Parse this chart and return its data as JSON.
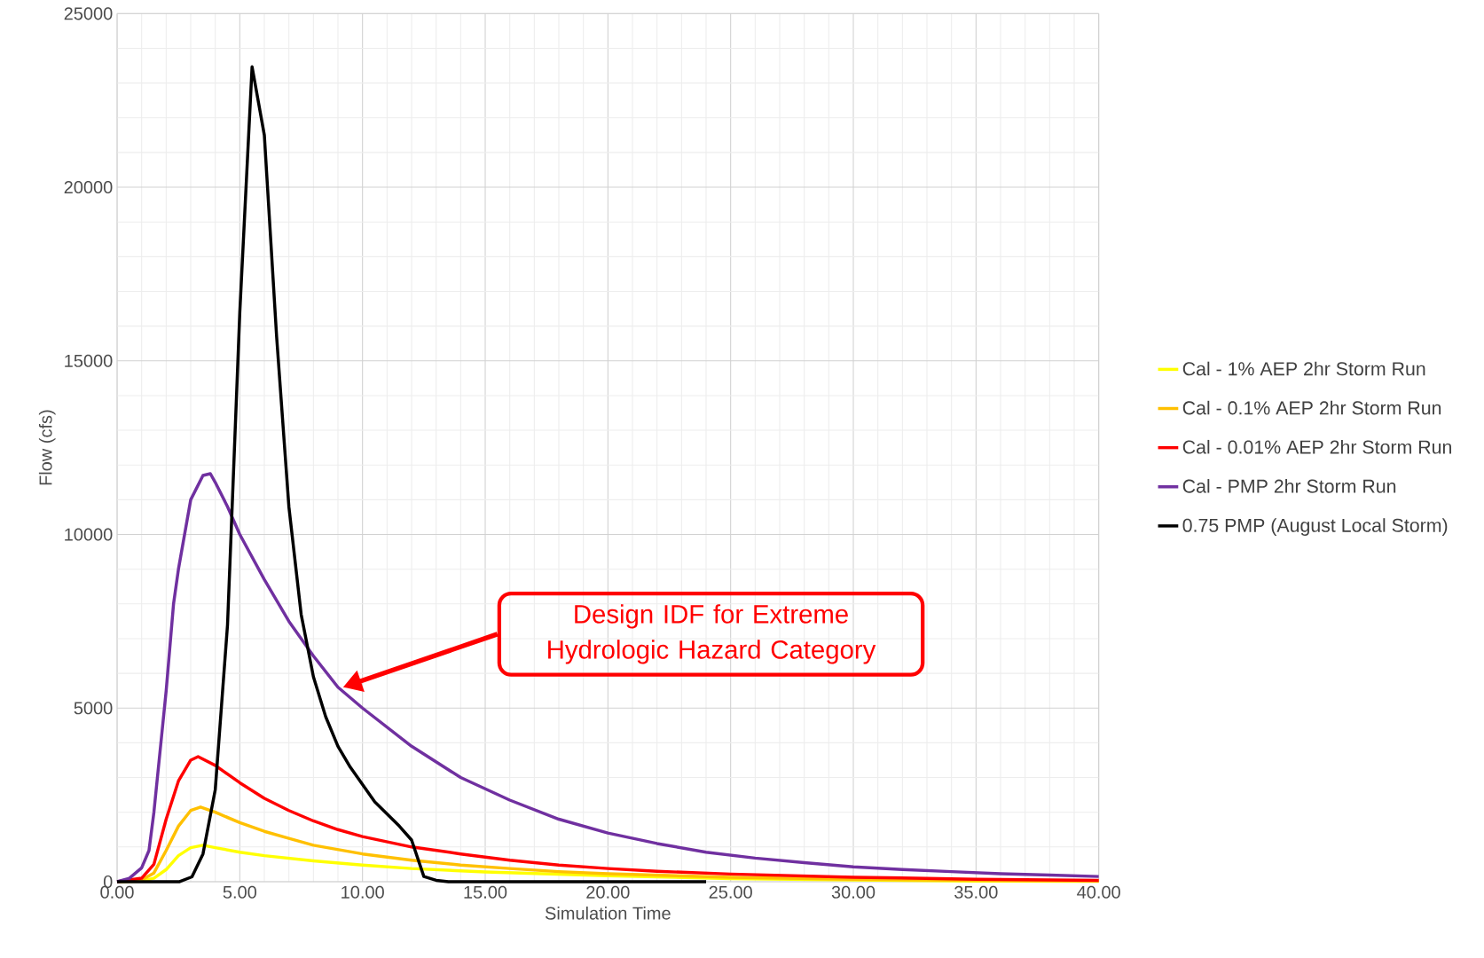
{
  "chart_data": {
    "type": "line",
    "xlabel": "Simulation Time",
    "ylabel": "Flow (cfs)",
    "xlim": [
      0,
      40
    ],
    "ylim": [
      0,
      25000
    ],
    "xticks": [
      {
        "value": 0,
        "label": "0.00"
      },
      {
        "value": 5,
        "label": "5.00"
      },
      {
        "value": 10,
        "label": "10.00"
      },
      {
        "value": 15,
        "label": "15.00"
      },
      {
        "value": 20,
        "label": "20.00"
      },
      {
        "value": 25,
        "label": "25.00"
      },
      {
        "value": 30,
        "label": "30.00"
      },
      {
        "value": 35,
        "label": "35.00"
      },
      {
        "value": 40,
        "label": "40.00"
      }
    ],
    "yticks": [
      0,
      5000,
      10000,
      15000,
      20000,
      25000
    ],
    "grid": true,
    "legend": "right",
    "marker": "none",
    "line_style": "solid",
    "annotations": [
      "Design IDF for Extreme Hydrologic Hazard Category"
    ],
    "series": [
      {
        "name": "Cal - 1% AEP 2hr Storm Run",
        "color": "#ffff00",
        "x": [
          0,
          1,
          1.5,
          2,
          2.5,
          3,
          3.5,
          4,
          5,
          6,
          8,
          10,
          12,
          15,
          20,
          25,
          30,
          35,
          40
        ],
        "values": [
          0,
          20,
          100,
          350,
          750,
          980,
          1050,
          980,
          850,
          750,
          600,
          480,
          380,
          280,
          170,
          90,
          50,
          20,
          10
        ]
      },
      {
        "name": "Cal - 0.1% AEP 2hr Storm Run",
        "color": "#ffc000",
        "x": [
          0,
          1,
          1.5,
          2,
          2.5,
          3,
          3.4,
          4,
          5,
          6,
          7,
          8,
          10,
          12,
          14,
          16,
          18,
          20,
          25,
          30,
          35,
          40
        ],
        "values": [
          0,
          50,
          250,
          900,
          1600,
          2050,
          2150,
          2000,
          1700,
          1450,
          1250,
          1050,
          800,
          620,
          480,
          380,
          290,
          230,
          130,
          70,
          40,
          20
        ]
      },
      {
        "name": "Cal - 0.01% AEP 2hr Storm Run",
        "color": "#ff0000",
        "x": [
          0,
          1,
          1.5,
          2,
          2.5,
          3,
          3.3,
          4,
          5,
          6,
          7,
          8,
          9,
          10,
          12,
          14,
          16,
          18,
          20,
          22,
          25,
          30,
          35,
          40
        ],
        "values": [
          0,
          100,
          500,
          1800,
          2900,
          3500,
          3600,
          3350,
          2850,
          2400,
          2050,
          1750,
          1500,
          1300,
          1000,
          800,
          620,
          480,
          380,
          300,
          220,
          130,
          70,
          40
        ]
      },
      {
        "name": "Cal - PMP 2hr Storm Run",
        "color": "#7030a0",
        "x": [
          0,
          0.5,
          1,
          1.3,
          1.5,
          2,
          2.3,
          2.5,
          3,
          3.5,
          3.8,
          4,
          4.5,
          5,
          6,
          7,
          8,
          9,
          10,
          12,
          14,
          16,
          18,
          20,
          22,
          24,
          26,
          28,
          30,
          32,
          34,
          36,
          38,
          40
        ],
        "values": [
          0,
          100,
          400,
          900,
          2000,
          5500,
          8000,
          9000,
          11000,
          11700,
          11750,
          11500,
          10800,
          10000,
          8700,
          7500,
          6500,
          5600,
          5000,
          3900,
          3000,
          2350,
          1800,
          1400,
          1100,
          850,
          680,
          550,
          430,
          350,
          290,
          230,
          190,
          150
        ]
      },
      {
        "name": "0.75 PMP (August Local Storm)",
        "color": "#000000",
        "x": [
          0,
          2.55,
          3.05,
          3.5,
          4,
          4.5,
          5,
          5.5,
          6,
          6.5,
          7,
          7.5,
          8,
          8.5,
          9,
          9.5,
          10,
          10.5,
          11,
          11.5,
          12,
          12.5,
          13,
          13.5,
          24
        ],
        "values": [
          0,
          0,
          140,
          800,
          2650,
          7400,
          16400,
          23470,
          21500,
          15700,
          10800,
          7700,
          5900,
          4750,
          3900,
          3300,
          2800,
          2300,
          1950,
          1600,
          1200,
          150,
          40,
          0,
          0
        ]
      }
    ]
  }
}
